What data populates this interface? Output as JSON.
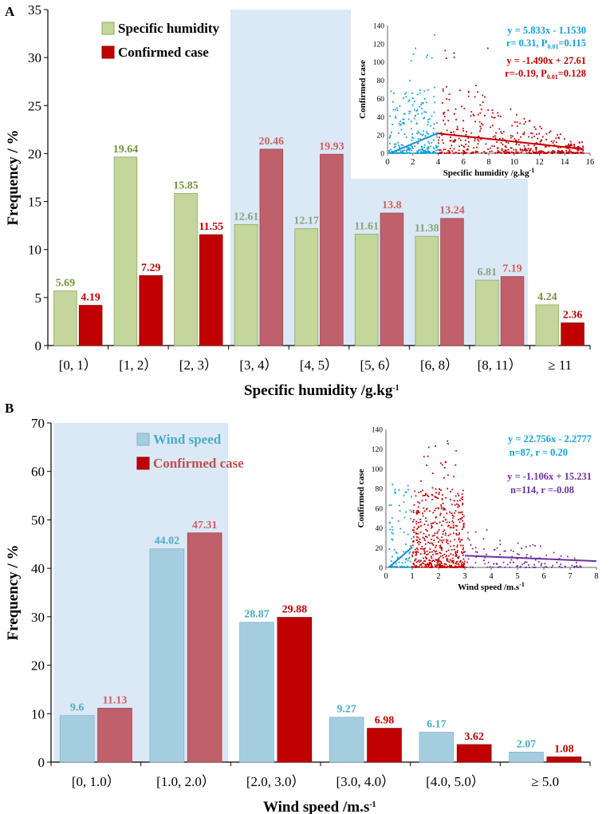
{
  "colors": {
    "humidity_bar": "#c3d69b",
    "case_bar": "#c00000",
    "case_bar_muted": "#c0606a",
    "humidity_label": "#76923c",
    "case_label": "#c00000",
    "case_label_muted": "#d06060",
    "wind_bar": "#a5cde0",
    "wind_label": "#4bacc6",
    "highlight": "#dbe8f5",
    "inset_blue": "#0fa0dc",
    "inset_red": "#c00000",
    "inset_purple": "#7030a0",
    "fit_blue": "#1f8fcf"
  },
  "chart_data": [
    {
      "panel": "A",
      "type": "bar",
      "ylabel": "Frequency / %",
      "xlabel": "Specific humidity /g.kg",
      "xlabel_sup": "-1",
      "ylim": [
        0,
        35
      ],
      "yticks": [
        0,
        5,
        10,
        15,
        20,
        25,
        30,
        35
      ],
      "categories": [
        "[0, 1）",
        "[1, 2）",
        "[2, 3）",
        "[3, 4）",
        "[4, 5）",
        "[5, 6）",
        "[6, 8）",
        "[8, 11）",
        "≥ 11"
      ],
      "legend": [
        "Specific humidity",
        "Confirmed case"
      ],
      "series": [
        {
          "name": "Specific humidity",
          "values": [
            5.69,
            19.64,
            15.85,
            12.61,
            12.17,
            11.61,
            11.38,
            6.81,
            4.24
          ],
          "labels": [
            "5.69",
            "19.64",
            "15.85",
            "12.61",
            "12.17",
            "11.61",
            "11.38",
            "6.81",
            "4.24"
          ]
        },
        {
          "name": "Confirmed case",
          "values": [
            4.19,
            7.29,
            11.55,
            20.46,
            19.93,
            13.8,
            13.24,
            7.19,
            2.36
          ],
          "labels": [
            "4.19",
            "7.29",
            "11.55",
            "20.46",
            "19.93",
            "13.8",
            "13.24",
            "7.19",
            "2.36"
          ]
        }
      ],
      "highlight_categories": [
        3,
        8
      ],
      "inset": {
        "type": "scatter",
        "xlabel": "Specific humidity /g.kg",
        "xlabel_sup": "-1",
        "ylabel": "Confirmed case",
        "xlim": [
          0,
          16
        ],
        "ylim": [
          0,
          140
        ],
        "xticks": [
          0,
          2,
          4,
          6,
          8,
          10,
          12,
          14,
          16
        ],
        "yticks": [
          0,
          20,
          40,
          60,
          80,
          100,
          120,
          140
        ],
        "eq1": "y = 5.833x - 1.1530",
        "stat1_a": "r= 0.31, P",
        "stat1_sub": "0.01",
        "stat1_b": "=0.115",
        "eq2": "y = -1.490x + 27.61",
        "stat2_a": "r=-0.19, P",
        "stat2_sub": "0.01",
        "stat2_b": "=0.128",
        "fit1": {
          "slope": 5.833,
          "intercept": -1.153,
          "x_range": [
            0.2,
            4
          ]
        },
        "fit2": {
          "slope": -1.49,
          "intercept": 27.61,
          "x_range": [
            4,
            15.5
          ]
        }
      }
    },
    {
      "panel": "B",
      "type": "bar",
      "ylabel": "Frequency / %",
      "xlabel": "Wind speed /m.s",
      "xlabel_sup": "-1",
      "ylim": [
        0,
        70
      ],
      "yticks": [
        0,
        10,
        20,
        30,
        40,
        50,
        60,
        70
      ],
      "categories": [
        "[0, 1.0）",
        "[1.0, 2.0）",
        "[2.0, 3.0）",
        "[3.0, 4.0）",
        "[4.0, 5.0）",
        "≥ 5.0"
      ],
      "legend": [
        "Wind speed",
        "Confirmed case"
      ],
      "series": [
        {
          "name": "Wind speed",
          "values": [
            9.6,
            44.02,
            28.87,
            9.27,
            6.17,
            2.07
          ],
          "labels": [
            "9.6",
            "44.02",
            "28.87",
            "9.27",
            "6.17",
            "2.07"
          ]
        },
        {
          "name": "Confirmed case",
          "values": [
            11.13,
            47.31,
            29.88,
            6.98,
            3.62,
            1.08
          ],
          "labels": [
            "11.13",
            "47.31",
            "29.88",
            "6.98",
            "3.62",
            "1.08"
          ]
        }
      ],
      "highlight_categories": [
        0,
        2
      ],
      "inset": {
        "type": "scatter",
        "xlabel": "Wind speed /m.s",
        "xlabel_sup": "-1",
        "ylabel": "Confirmed case",
        "xlim": [
          0,
          8
        ],
        "ylim": [
          0,
          140
        ],
        "xticks": [
          0,
          1,
          2,
          3,
          4,
          5,
          6,
          7,
          8
        ],
        "yticks": [
          0,
          20,
          40,
          60,
          80,
          100,
          120,
          140
        ],
        "eq1": "y = 22.756x - 2.2777",
        "stat1": "n=87,  r = 0.20",
        "eq2": "y = -1.106x + 15.231",
        "stat2": "n=114,  r =-0.08",
        "fit1": {
          "slope": 22.756,
          "intercept": -2.2777,
          "x_range": [
            0.1,
            1
          ]
        },
        "fit2": {
          "slope": -1.106,
          "intercept": 15.231,
          "x_range": [
            3,
            8
          ]
        }
      }
    }
  ]
}
